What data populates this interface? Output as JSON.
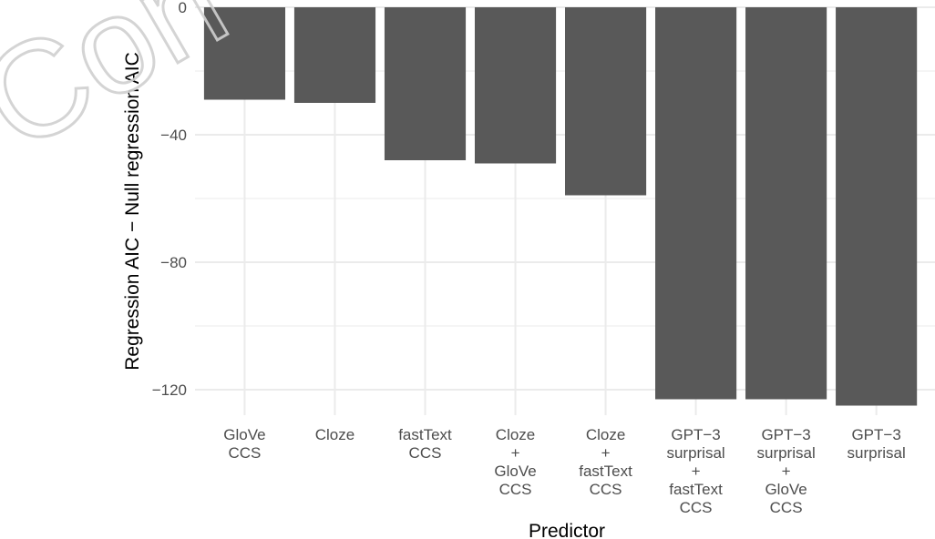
{
  "watermark": "Con",
  "chart_data": {
    "type": "bar",
    "title": "",
    "xlabel": "Predictor",
    "ylabel": "Regression AIC − Null regression AIC",
    "categories": [
      [
        "GloVe",
        "CCS"
      ],
      [
        "Cloze"
      ],
      [
        "fastText",
        "CCS"
      ],
      [
        "Cloze",
        "+",
        "GloVe",
        "CCS"
      ],
      [
        "Cloze",
        "+",
        "fastText",
        "CCS"
      ],
      [
        "GPT−3",
        "surprisal",
        "+",
        "fastText",
        "CCS"
      ],
      [
        "GPT−3",
        "surprisal",
        "+",
        "GloVe",
        "CCS"
      ],
      [
        "GPT−3",
        "surprisal"
      ]
    ],
    "values": [
      -29,
      -30,
      -48,
      -49,
      -59,
      -123,
      -123,
      -125
    ],
    "ylim": [
      -128,
      0
    ],
    "yticks": [
      0,
      -40,
      -80,
      -120
    ],
    "yticklabels": [
      "0",
      "−40",
      "−80",
      "−120"
    ],
    "grid": true,
    "bar_color": "#595959",
    "grid_color": "#ebebeb"
  }
}
